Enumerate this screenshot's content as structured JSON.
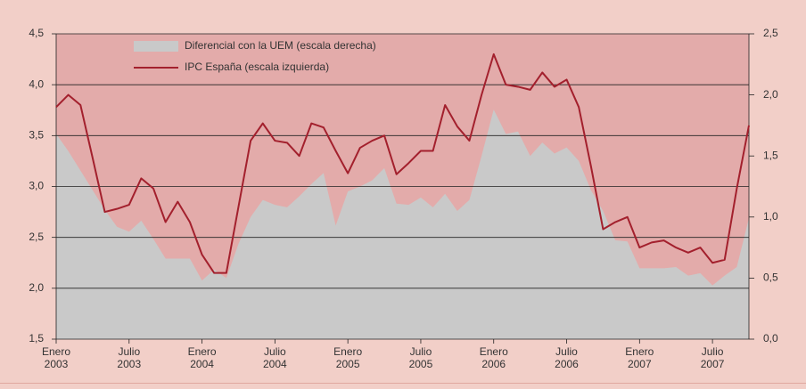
{
  "chart_data": {
    "type": "line",
    "categories": [
      "Enero 2003",
      null,
      null,
      null,
      null,
      null,
      "Julio 2003",
      null,
      null,
      null,
      null,
      null,
      "Enero 2004",
      null,
      null,
      null,
      null,
      null,
      "Julio 2004",
      null,
      null,
      null,
      null,
      null,
      "Enero 2005",
      null,
      null,
      null,
      null,
      null,
      "Julio 2005",
      null,
      null,
      null,
      null,
      null,
      "Enero 2006",
      null,
      null,
      null,
      null,
      null,
      "Julio 2006",
      null,
      null,
      null,
      null,
      null,
      "Enero 2007",
      null,
      null,
      null,
      null,
      null,
      "Julio 2007",
      null,
      null,
      null
    ],
    "series": [
      {
        "name": "Diferencial con la UEM (escala derecha)",
        "type": "area",
        "axis": "y2",
        "color": "#c9c9c9",
        "values": [
          1.68,
          1.54,
          1.38,
          1.22,
          1.06,
          0.92,
          0.88,
          0.97,
          0.82,
          0.66,
          0.66,
          0.66,
          0.48,
          0.57,
          0.5,
          0.78,
          1.0,
          1.14,
          1.1,
          1.08,
          1.17,
          1.27,
          1.36,
          0.93,
          1.21,
          1.25,
          1.3,
          1.4,
          1.11,
          1.1,
          1.16,
          1.08,
          1.19,
          1.05,
          1.14,
          1.5,
          1.88,
          1.68,
          1.7,
          1.5,
          1.61,
          1.52,
          1.57,
          1.46,
          1.22,
          1.05,
          0.81,
          0.8,
          0.58,
          0.58,
          0.58,
          0.59,
          0.52,
          0.54,
          0.44,
          0.52,
          0.59,
          0.99
        ]
      },
      {
        "name": "IPC España (escala izquierda)",
        "type": "line",
        "color": "#a3202d",
        "values": [
          3.78,
          3.9,
          3.8,
          3.28,
          2.75,
          2.78,
          2.82,
          3.08,
          2.98,
          2.65,
          2.85,
          2.65,
          2.33,
          2.15,
          2.15,
          2.8,
          3.45,
          3.62,
          3.45,
          3.43,
          3.3,
          3.62,
          3.58,
          3.35,
          3.13,
          3.38,
          3.45,
          3.5,
          3.12,
          3.23,
          3.35,
          3.35,
          3.8,
          3.59,
          3.45,
          3.9,
          4.3,
          4.0,
          3.98,
          3.95,
          4.12,
          3.98,
          4.05,
          3.78,
          3.2,
          2.58,
          2.65,
          2.7,
          2.4,
          2.45,
          2.47,
          2.4,
          2.35,
          2.4,
          2.25,
          2.28,
          2.98,
          3.6
        ]
      }
    ],
    "ylim": [
      1.5,
      4.5
    ],
    "yticks": [
      {
        "value": 1.5,
        "label": "1,5"
      },
      {
        "value": 2.0,
        "label": "2,0"
      },
      {
        "value": 2.5,
        "label": "2,5"
      },
      {
        "value": 3.0,
        "label": "3,0"
      },
      {
        "value": 3.5,
        "label": "3,5"
      },
      {
        "value": 4.0,
        "label": "4,0"
      },
      {
        "value": 4.5,
        "label": "4,5"
      }
    ],
    "y2lim": [
      0,
      2.5
    ],
    "y2ticks": [
      {
        "value": 0,
        "label": "0,0"
      },
      {
        "value": 0.5,
        "label": "0,5"
      },
      {
        "value": 1.0,
        "label": "1,0"
      },
      {
        "value": 1.5,
        "label": "1,5"
      },
      {
        "value": 2.0,
        "label": "2,0"
      },
      {
        "value": 2.5,
        "label": "2,5"
      }
    ],
    "grid": true,
    "legend": "top-left"
  }
}
